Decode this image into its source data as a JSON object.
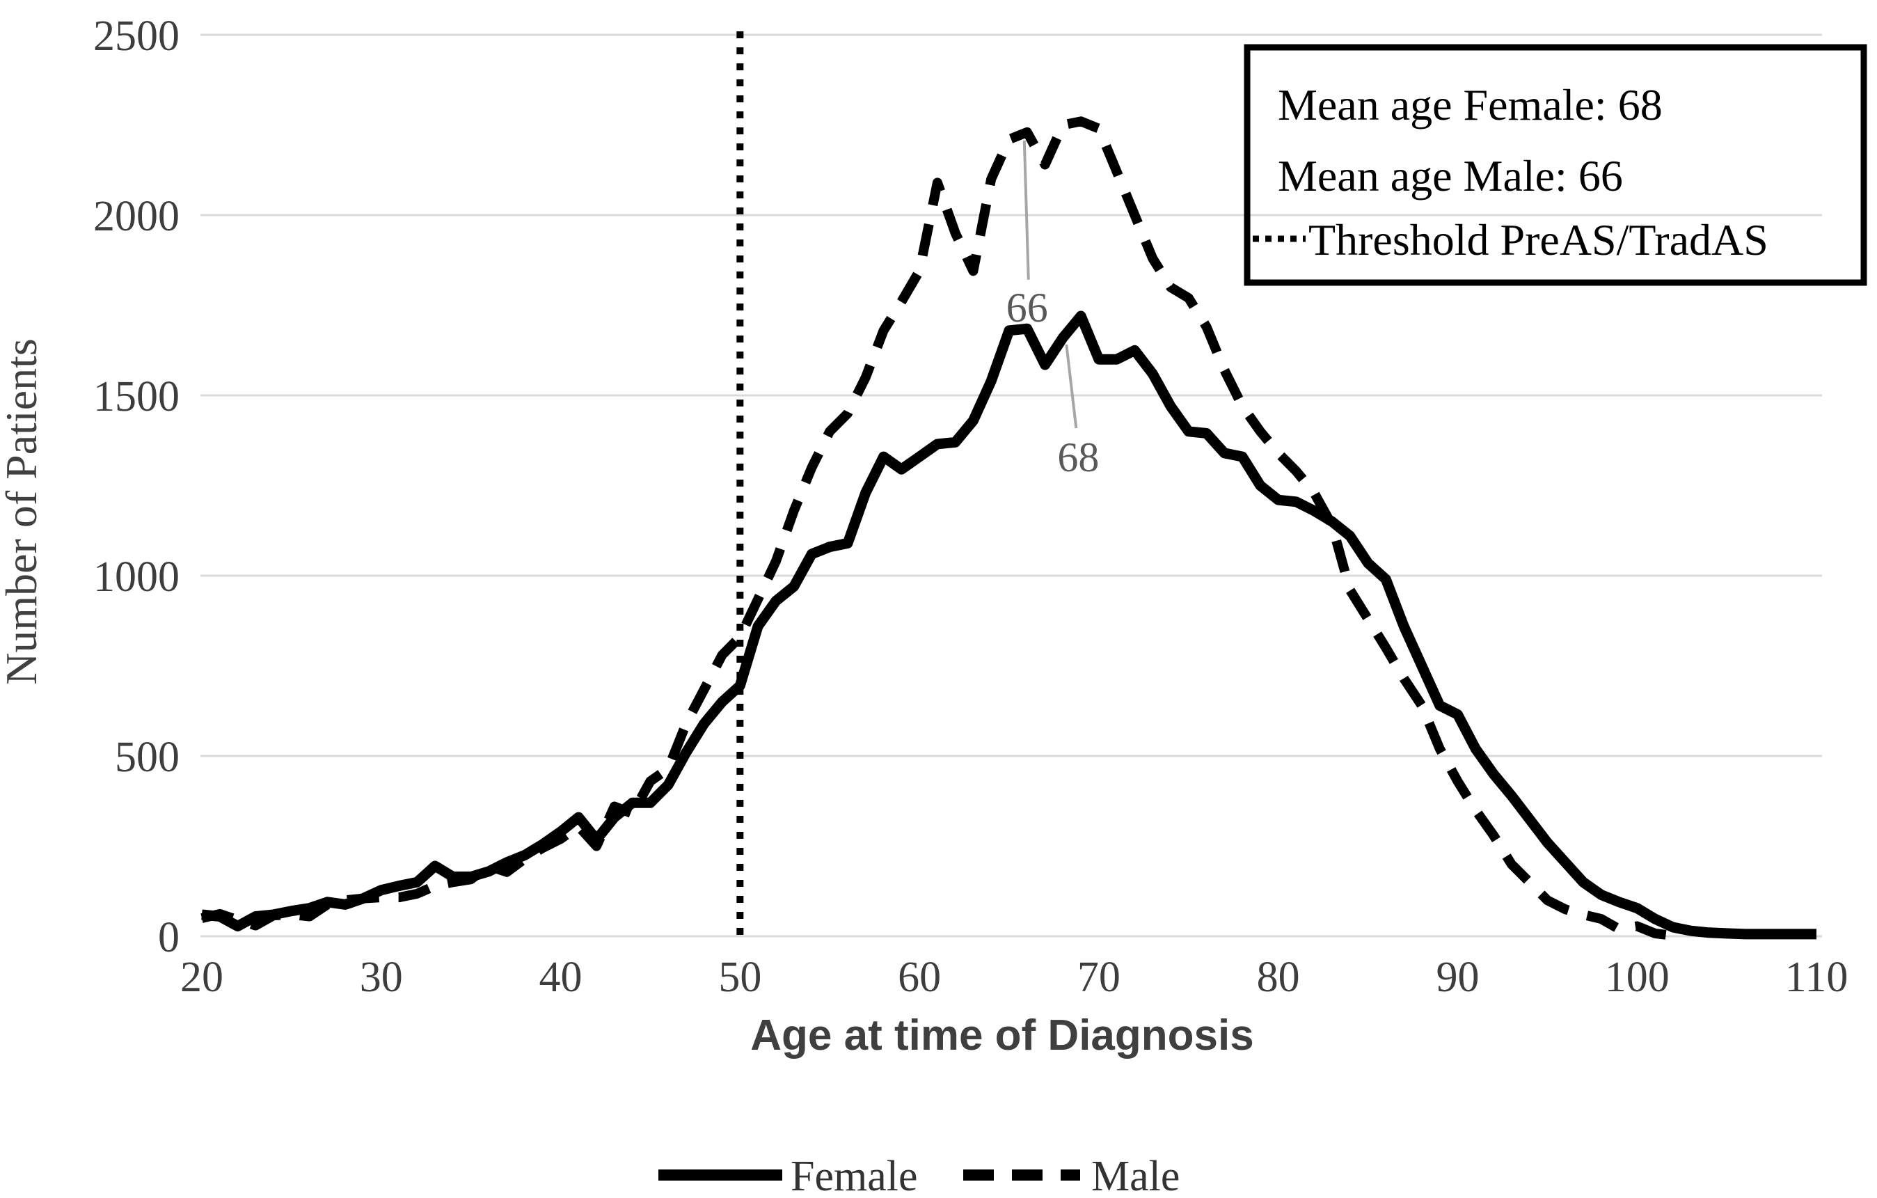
{
  "chart_data": {
    "type": "line",
    "title": "",
    "xlabel": "Age at time of Diagnosis",
    "ylabel": "Number of Patients",
    "xlim": [
      20,
      110
    ],
    "ylim": [
      0,
      2500
    ],
    "x_ticks": [
      20,
      30,
      40,
      50,
      60,
      70,
      80,
      90,
      100,
      110
    ],
    "y_ticks": [
      0,
      500,
      1000,
      1500,
      2000,
      2500
    ],
    "grid": "horizontal",
    "gridline_color": "#d9d9d9",
    "line_color": "#000000",
    "legend_position": "bottom",
    "x_start": 20,
    "x_step": 1,
    "threshold": {
      "x": 50,
      "label": "Threshold PreAS/TradAS"
    },
    "series": [
      {
        "name": "Female",
        "style": "solid",
        "color": "#000000",
        "values": [
          60,
          55,
          28,
          55,
          60,
          70,
          78,
          95,
          88,
          105,
          128,
          140,
          150,
          195,
          165,
          165,
          180,
          205,
          225,
          255,
          290,
          330,
          268,
          330,
          370,
          370,
          420,
          510,
          590,
          650,
          695,
          860,
          930,
          970,
          1060,
          1080,
          1090,
          1230,
          1330,
          1295,
          1330,
          1365,
          1370,
          1430,
          1540,
          1680,
          1685,
          1585,
          1660,
          1720,
          1600,
          1600,
          1625,
          1560,
          1470,
          1400,
          1395,
          1340,
          1330,
          1250,
          1210,
          1205,
          1180,
          1150,
          1110,
          1035,
          990,
          860,
          750,
          640,
          615,
          520,
          450,
          390,
          325,
          260,
          205,
          150,
          115,
          95,
          78,
          48,
          25,
          15,
          10,
          8,
          6,
          6,
          6,
          6,
          6
        ]
      },
      {
        "name": "Male",
        "style": "dashed",
        "color": "#000000",
        "values": [
          50,
          62,
          45,
          30,
          58,
          60,
          55,
          88,
          100,
          105,
          108,
          108,
          118,
          140,
          150,
          158,
          195,
          178,
          215,
          245,
          270,
          305,
          250,
          360,
          340,
          430,
          465,
          590,
          685,
          780,
          830,
          935,
          1040,
          1180,
          1300,
          1400,
          1450,
          1550,
          1680,
          1760,
          1845,
          2090,
          1950,
          1845,
          2100,
          2210,
          2230,
          2140,
          2250,
          2260,
          2240,
          2120,
          2000,
          1880,
          1800,
          1770,
          1690,
          1570,
          1470,
          1400,
          1340,
          1290,
          1230,
          1140,
          960,
          880,
          800,
          715,
          640,
          520,
          430,
          350,
          280,
          200,
          150,
          100,
          75,
          60,
          48,
          20,
          28,
          8,
          2,
          null,
          null,
          null,
          null,
          null,
          null,
          null,
          null
        ]
      }
    ],
    "annotations": [
      {
        "text": "66",
        "series": "Male",
        "age": 66
      },
      {
        "text": "68",
        "series": "Female",
        "age": 68
      }
    ],
    "info_box": {
      "lines": [
        "Mean age Female: 68",
        "Mean age Male: 66",
        "Threshold PreAS/TradAS"
      ]
    },
    "legend": [
      "Female",
      "Male"
    ]
  }
}
